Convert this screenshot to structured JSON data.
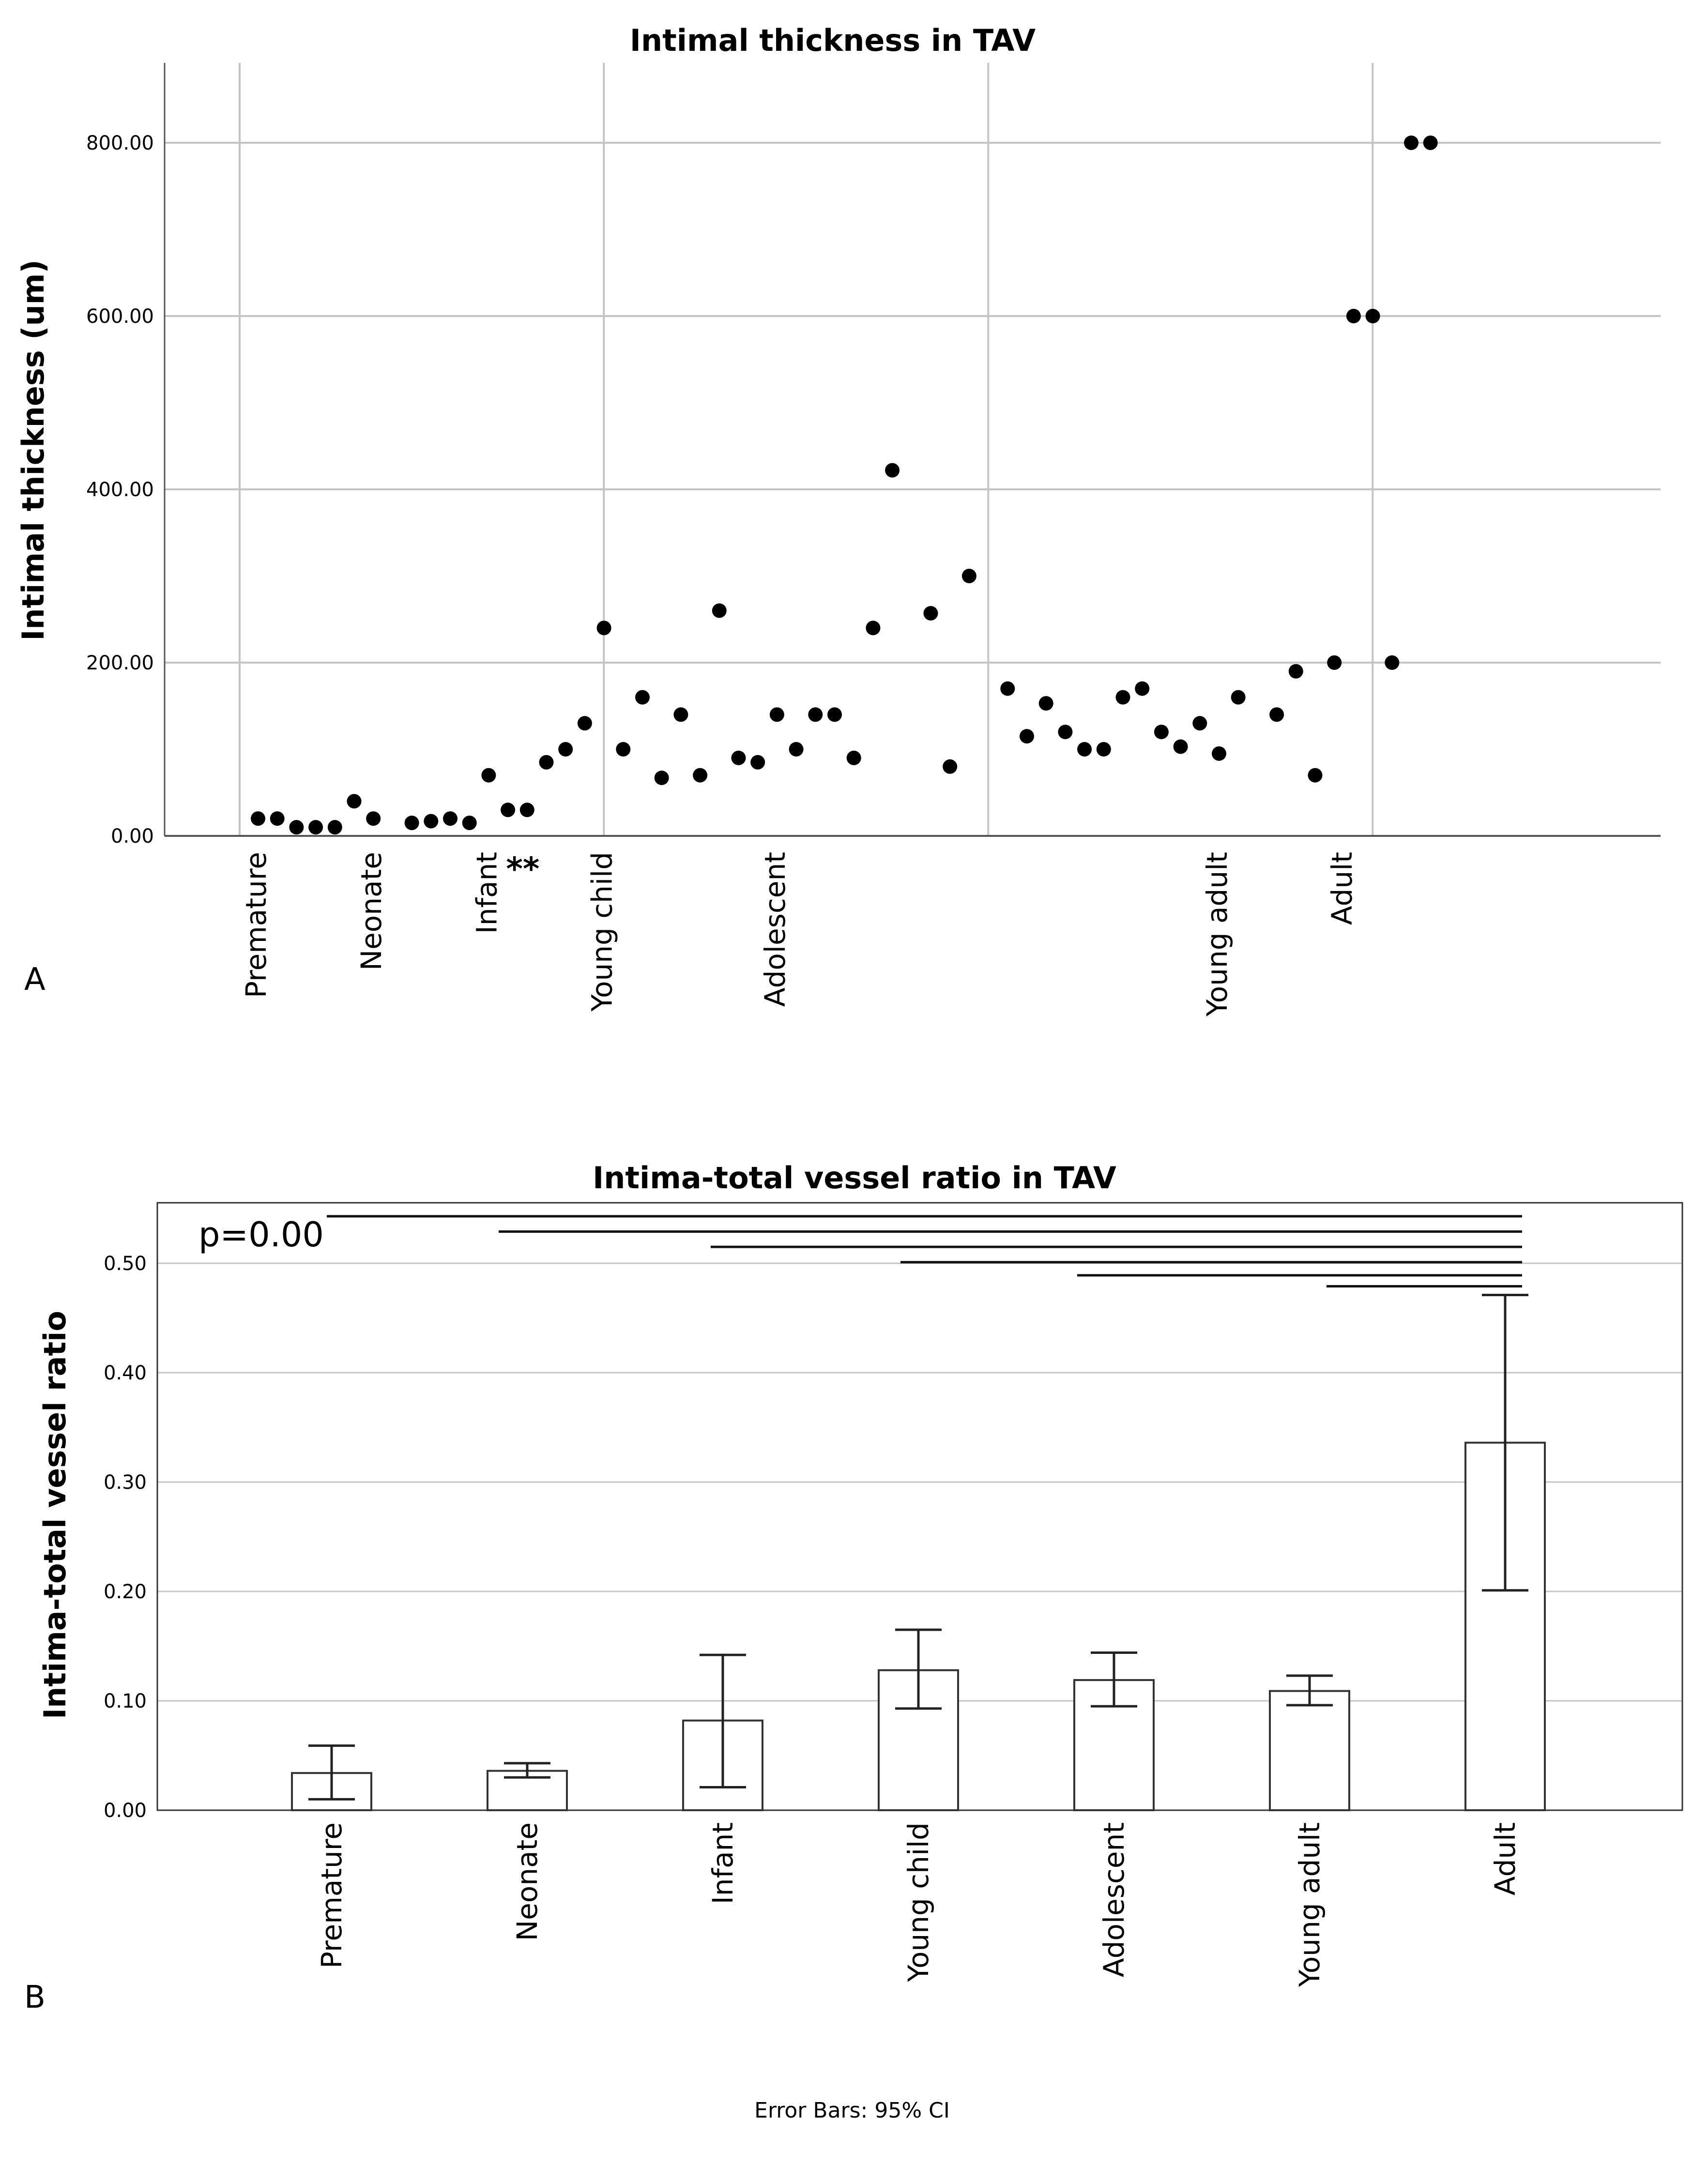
{
  "panels": {
    "a": "A",
    "b": "B"
  },
  "footnote": "Error Bars: 95% CI",
  "colors": {
    "grid": "#c4c4c4",
    "axis": "#555555",
    "point": "#000000",
    "bar_fill": "#ffffff",
    "bar_stroke": "#333333",
    "stars": "#d42a2a"
  },
  "chart_data": [
    {
      "type": "scatter",
      "title": "Intimal thickness in TAV",
      "xlabel": "",
      "ylabel": "Intimal thickness (um)",
      "ylim": [
        0,
        880
      ],
      "yticks": [
        0,
        200,
        400,
        600,
        800
      ],
      "ytick_labels": [
        "0.00",
        "200.00",
        "400.00",
        "600.00",
        "800.00"
      ],
      "xlim": [
        0,
        76
      ],
      "x_vertical_gridlines": [
        0,
        20,
        40,
        60
      ],
      "categories": [
        {
          "label": "Premature",
          "x": 1
        },
        {
          "label": "Neonate",
          "x": 7
        },
        {
          "label": "Infant",
          "x": 13
        },
        {
          "label": "Young child",
          "x": 19
        },
        {
          "label": "Adolescent",
          "x": 28
        },
        {
          "label": "Young adult",
          "x": 51
        },
        {
          "label": "Adult",
          "x": 57.5
        }
      ],
      "significance_marker": {
        "text": "**",
        "after": "Infant"
      },
      "points": [
        {
          "x": 1,
          "y": 20
        },
        {
          "x": 2,
          "y": 20
        },
        {
          "x": 3,
          "y": 10
        },
        {
          "x": 4,
          "y": 10
        },
        {
          "x": 5,
          "y": 10
        },
        {
          "x": 6,
          "y": 40
        },
        {
          "x": 7,
          "y": 20
        },
        {
          "x": 9,
          "y": 15
        },
        {
          "x": 10,
          "y": 17
        },
        {
          "x": 11,
          "y": 20
        },
        {
          "x": 12,
          "y": 15
        },
        {
          "x": 13,
          "y": 70
        },
        {
          "x": 14,
          "y": 30
        },
        {
          "x": 15,
          "y": 30
        },
        {
          "x": 16,
          "y": 85
        },
        {
          "x": 17,
          "y": 100
        },
        {
          "x": 18,
          "y": 130
        },
        {
          "x": 19,
          "y": 240
        },
        {
          "x": 20,
          "y": 100
        },
        {
          "x": 21,
          "y": 160
        },
        {
          "x": 22,
          "y": 67
        },
        {
          "x": 23,
          "y": 140
        },
        {
          "x": 24,
          "y": 70
        },
        {
          "x": 25,
          "y": 260
        },
        {
          "x": 26,
          "y": 90
        },
        {
          "x": 27,
          "y": 85
        },
        {
          "x": 28,
          "y": 140
        },
        {
          "x": 29,
          "y": 100
        },
        {
          "x": 30,
          "y": 140
        },
        {
          "x": 31,
          "y": 140
        },
        {
          "x": 32,
          "y": 90
        },
        {
          "x": 33,
          "y": 240
        },
        {
          "x": 34,
          "y": 422
        },
        {
          "x": 36,
          "y": 257
        },
        {
          "x": 37,
          "y": 80
        },
        {
          "x": 38,
          "y": 300
        },
        {
          "x": 40,
          "y": 170
        },
        {
          "x": 41,
          "y": 115
        },
        {
          "x": 42,
          "y": 153
        },
        {
          "x": 43,
          "y": 120
        },
        {
          "x": 44,
          "y": 100
        },
        {
          "x": 45,
          "y": 100
        },
        {
          "x": 46,
          "y": 160
        },
        {
          "x": 47,
          "y": 170
        },
        {
          "x": 48,
          "y": 120
        },
        {
          "x": 49,
          "y": 103
        },
        {
          "x": 50,
          "y": 130
        },
        {
          "x": 51,
          "y": 95
        },
        {
          "x": 52,
          "y": 160
        },
        {
          "x": 54,
          "y": 140
        },
        {
          "x": 55,
          "y": 190
        },
        {
          "x": 56,
          "y": 70
        },
        {
          "x": 57,
          "y": 200
        },
        {
          "x": 58,
          "y": 600
        },
        {
          "x": 59,
          "y": 600
        },
        {
          "x": 60,
          "y": 200
        },
        {
          "x": 61,
          "y": 800
        },
        {
          "x": 62,
          "y": 800
        }
      ]
    },
    {
      "type": "bar",
      "title": "Intima-total vessel ratio in TAV",
      "xlabel": "",
      "ylabel": "Intima-total vessel ratio",
      "ylim": [
        0,
        0.555
      ],
      "yticks": [
        0,
        0.1,
        0.2,
        0.3,
        0.4,
        0.5
      ],
      "ytick_labels": [
        "0.00",
        "0.10",
        "0.20",
        "0.30",
        "0.40",
        "0.50"
      ],
      "categories": [
        "Premature",
        "Neonate",
        "Infant",
        "Young child",
        "Adolescent",
        "Young adult",
        "Adult"
      ],
      "values": [
        0.034,
        0.036,
        0.082,
        0.128,
        0.119,
        0.109,
        0.336
      ],
      "ci_lower": [
        0.01,
        0.03,
        0.021,
        0.093,
        0.095,
        0.096,
        0.201
      ],
      "ci_upper": [
        0.059,
        0.043,
        0.142,
        0.165,
        0.144,
        0.123,
        0.471
      ],
      "annotation": "p=0.00",
      "comparison_lines": [
        {
          "from": "Premature",
          "to": "Adult",
          "y": 0.543
        },
        {
          "from": "Neonate",
          "to": "Adult",
          "y": 0.529
        },
        {
          "from": "Infant",
          "to": "Adult",
          "y": 0.515
        },
        {
          "from": "Young child",
          "to": "Adult",
          "y": 0.501
        },
        {
          "from": "Adolescent",
          "to": "Adult",
          "y": 0.489
        },
        {
          "from": "Young adult",
          "to": "Adult",
          "y": 0.479
        }
      ]
    }
  ]
}
